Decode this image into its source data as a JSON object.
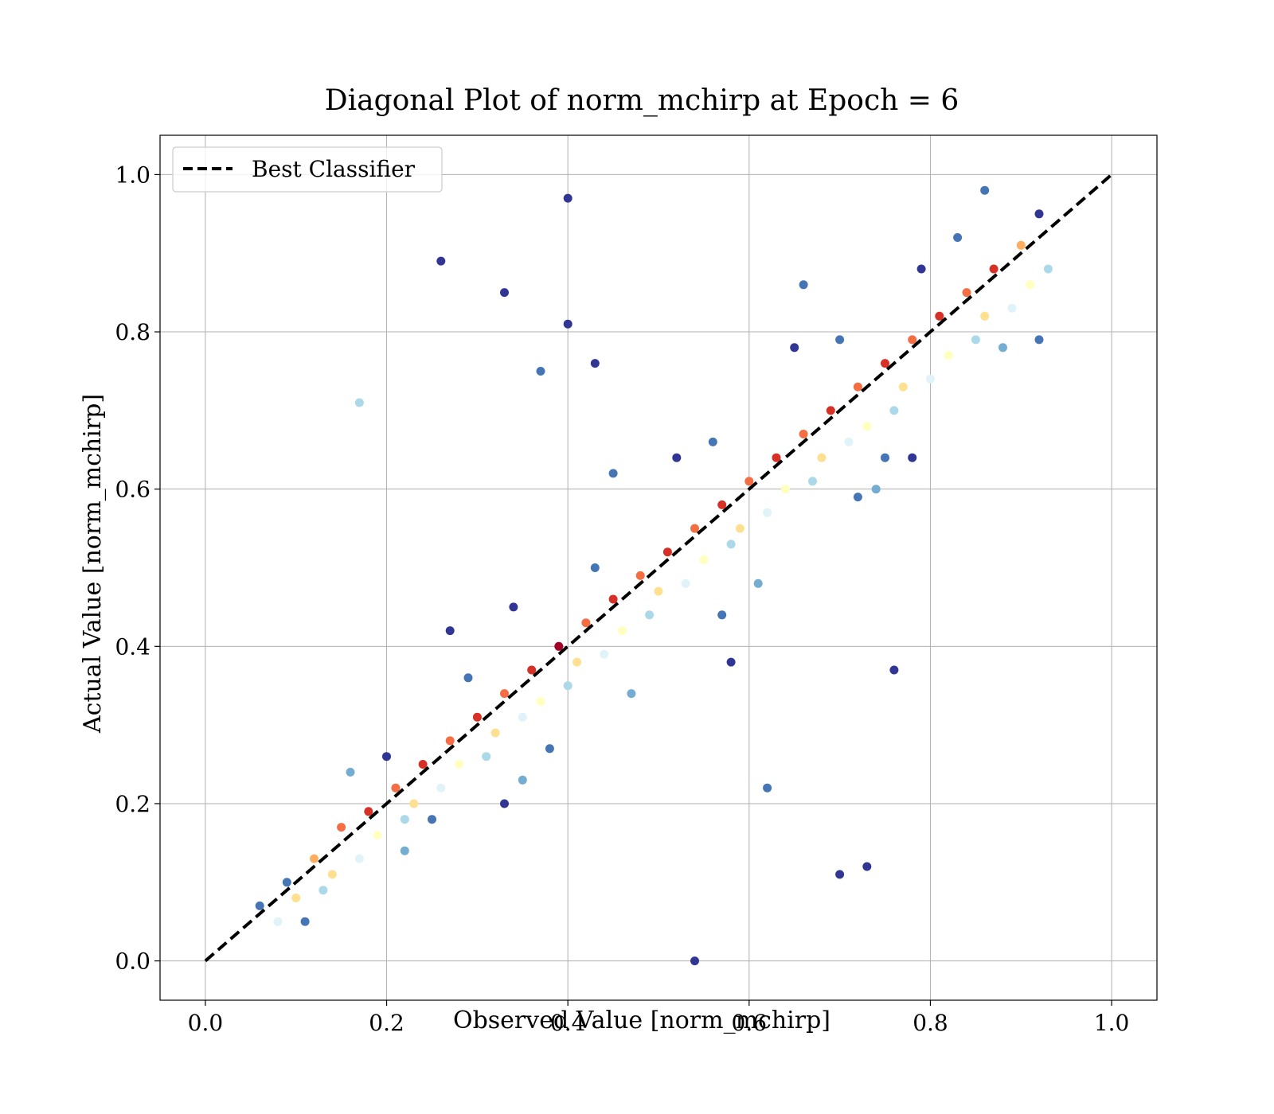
{
  "chart_data": {
    "type": "scatter",
    "title": "Diagonal Plot of norm_mchirp at Epoch = 6",
    "xlabel": "Observed Value [norm_mchirp]",
    "ylabel": "Actual Value [norm_mchirp]",
    "xlim": [
      -0.05,
      1.05
    ],
    "ylim": [
      -0.05,
      1.05
    ],
    "xticks": [
      "0.0",
      "0.2",
      "0.4",
      "0.6",
      "0.8",
      "1.0"
    ],
    "yticks": [
      "0.0",
      "0.2",
      "0.4",
      "0.6",
      "0.8",
      "1.0"
    ],
    "xtick_values": [
      0.0,
      0.2,
      0.4,
      0.6,
      0.8,
      1.0
    ],
    "ytick_values": [
      0.0,
      0.2,
      0.4,
      0.6,
      0.8,
      1.0
    ],
    "grid": true,
    "legend": {
      "placement": "top-left",
      "entries": [
        "Best Classifier"
      ]
    },
    "reference_line": {
      "name": "Best Classifier",
      "x": [
        0.0,
        1.0
      ],
      "y": [
        0.0,
        1.0
      ],
      "style": "dashed",
      "color": "#000000"
    },
    "colormap": "RdYlBu_r (point density)",
    "colors": [
      "#313695",
      "#4575b4",
      "#74add1",
      "#abd9e9",
      "#e0f3f8",
      "#ffffbf",
      "#fee090",
      "#fdae61",
      "#f46d43",
      "#d73027",
      "#a50026"
    ],
    "points_x": [
      0.12,
      0.15,
      0.18,
      0.21,
      0.24,
      0.27,
      0.3,
      0.33,
      0.36,
      0.39,
      0.42,
      0.45,
      0.48,
      0.51,
      0.54,
      0.57,
      0.6,
      0.63,
      0.66,
      0.69,
      0.72,
      0.75,
      0.78,
      0.81,
      0.84,
      0.87,
      0.9,
      0.1,
      0.14,
      0.19,
      0.23,
      0.28,
      0.32,
      0.37,
      0.41,
      0.46,
      0.5,
      0.55,
      0.59,
      0.64,
      0.68,
      0.73,
      0.77,
      0.82,
      0.86,
      0.91,
      0.08,
      0.13,
      0.17,
      0.22,
      0.26,
      0.31,
      0.35,
      0.4,
      0.44,
      0.49,
      0.53,
      0.58,
      0.62,
      0.67,
      0.71,
      0.76,
      0.8,
      0.85,
      0.89,
      0.93,
      0.16,
      0.22,
      0.29,
      0.35,
      0.43,
      0.47,
      0.56,
      0.61,
      0.7,
      0.74,
      0.83,
      0.88,
      0.06,
      0.09,
      0.2,
      0.25,
      0.34,
      0.38,
      0.52,
      0.57,
      0.65,
      0.72,
      0.79,
      0.92,
      0.11,
      0.27,
      0.33,
      0.45,
      0.58,
      0.66,
      0.78,
      0.86,
      0.17,
      0.26,
      0.33,
      0.37,
      0.4,
      0.43,
      0.62,
      0.7,
      0.73,
      0.76,
      0.54,
      0.75,
      0.92,
      0.4
    ],
    "points_y": [
      0.13,
      0.17,
      0.19,
      0.22,
      0.25,
      0.28,
      0.31,
      0.34,
      0.37,
      0.4,
      0.43,
      0.46,
      0.49,
      0.52,
      0.55,
      0.58,
      0.61,
      0.64,
      0.67,
      0.7,
      0.73,
      0.76,
      0.79,
      0.82,
      0.85,
      0.88,
      0.91,
      0.08,
      0.11,
      0.16,
      0.2,
      0.25,
      0.29,
      0.33,
      0.38,
      0.42,
      0.47,
      0.51,
      0.55,
      0.6,
      0.64,
      0.68,
      0.73,
      0.77,
      0.82,
      0.86,
      0.05,
      0.09,
      0.13,
      0.18,
      0.22,
      0.26,
      0.31,
      0.35,
      0.39,
      0.44,
      0.48,
      0.53,
      0.57,
      0.61,
      0.66,
      0.7,
      0.74,
      0.79,
      0.83,
      0.88,
      0.24,
      0.14,
      0.36,
      0.23,
      0.5,
      0.34,
      0.66,
      0.48,
      0.79,
      0.6,
      0.92,
      0.78,
      0.07,
      0.1,
      0.26,
      0.18,
      0.45,
      0.27,
      0.64,
      0.44,
      0.78,
      0.59,
      0.88,
      0.95,
      0.05,
      0.42,
      0.2,
      0.62,
      0.38,
      0.86,
      0.64,
      0.98,
      0.71,
      0.89,
      0.85,
      0.75,
      0.81,
      0.76,
      0.22,
      0.11,
      0.12,
      0.37,
      0.0,
      0.64,
      0.79,
      0.97
    ],
    "points_level": [
      7,
      8,
      9,
      8,
      9,
      8,
      9,
      8,
      9,
      10,
      8,
      9,
      8,
      9,
      8,
      9,
      8,
      9,
      8,
      9,
      8,
      9,
      8,
      9,
      8,
      9,
      7,
      6,
      6,
      5,
      6,
      5,
      6,
      5,
      6,
      5,
      6,
      5,
      6,
      5,
      6,
      5,
      6,
      5,
      6,
      5,
      4,
      3,
      4,
      3,
      4,
      3,
      4,
      3,
      4,
      3,
      4,
      3,
      4,
      3,
      4,
      3,
      4,
      3,
      4,
      3,
      2,
      2,
      1,
      2,
      1,
      2,
      1,
      2,
      1,
      2,
      1,
      2,
      1,
      1,
      0,
      1,
      0,
      1,
      0,
      1,
      0,
      1,
      0,
      0,
      1,
      0,
      0,
      1,
      0,
      1,
      0,
      1,
      3,
      0,
      0,
      1,
      0,
      0,
      1,
      0,
      0,
      0,
      0,
      1,
      1,
      0
    ]
  }
}
